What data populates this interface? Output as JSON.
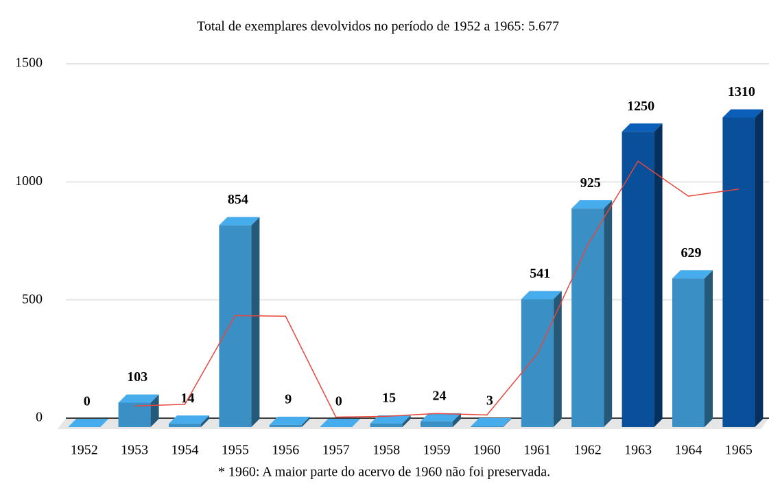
{
  "chart_data": {
    "type": "bar3d",
    "title": "Total de exemplares devolvidos no período de 1952 a 1965: 5.677",
    "note": "* 1960: A maior parte do acervo de 1960 não foi preservada.",
    "categories": [
      "1952",
      "1953",
      "1954",
      "1955",
      "1956",
      "1957",
      "1958",
      "1959",
      "1960",
      "1961",
      "1962",
      "1963",
      "1964",
      "1965"
    ],
    "values": [
      0,
      103,
      14,
      854,
      9,
      0,
      15,
      24,
      3,
      541,
      925,
      1250,
      629,
      1310
    ],
    "colors": [
      "#3a8fc4",
      "#3a8fc4",
      "#3a8fc4",
      "#3a8fc4",
      "#3a8fc4",
      "#3a8fc4",
      "#3a8fc4",
      "#3a8fc4",
      "#3a8fc4",
      "#3a8fc4",
      "#3a8fc4",
      "#0a4f9a",
      "#3a8fc4",
      "#0a4f9a"
    ],
    "trendline": {
      "color": "#e8463c",
      "values": [
        null,
        51.5,
        58.5,
        434,
        431.5,
        4.5,
        7.5,
        19.5,
        13.5,
        272,
        733,
        1087.5,
        939.5,
        969.5
      ]
    },
    "ylim": [
      0,
      1500
    ],
    "yticks": [
      0,
      500,
      1000,
      1500
    ],
    "grid": true
  }
}
